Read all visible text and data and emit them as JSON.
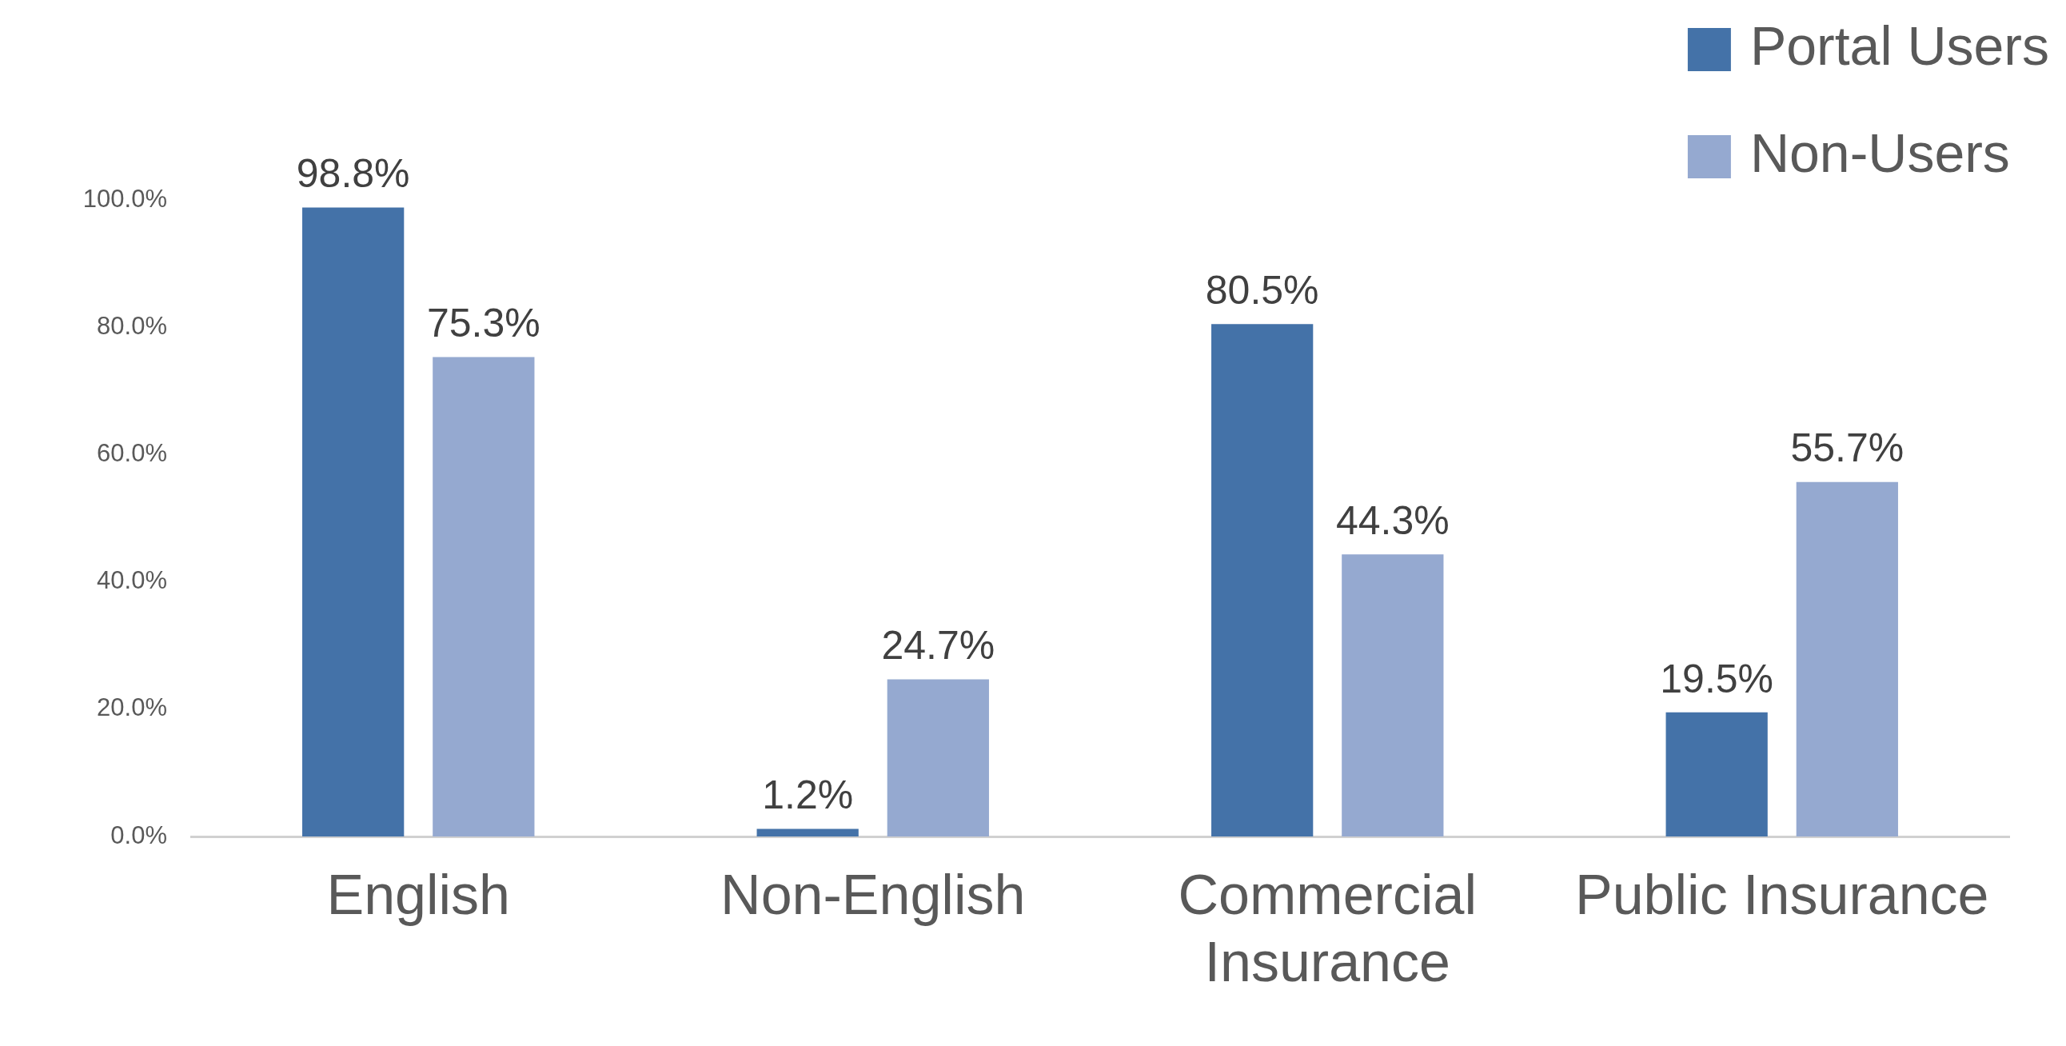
{
  "chart_data": {
    "type": "bar",
    "categories": [
      "English",
      "Non-English",
      "Commercial Insurance",
      "Public Insurance"
    ],
    "series": [
      {
        "name": "Portal Users",
        "color": "#4472a8",
        "values": [
          98.8,
          1.2,
          80.5,
          19.5
        ],
        "value_labels": [
          "98.8%",
          "1.2%",
          "80.5%",
          "19.5%"
        ]
      },
      {
        "name": "Non-Users",
        "color": "#95a9d0",
        "values": [
          75.3,
          24.7,
          44.3,
          55.7
        ],
        "value_labels": [
          "75.3%",
          "24.7%",
          "44.3%",
          "55.7%"
        ]
      }
    ],
    "ylim": [
      0,
      100
    ],
    "yticks": [
      {
        "value": 0,
        "label": "0.0%"
      },
      {
        "value": 20,
        "label": "20.0%"
      },
      {
        "value": 40,
        "label": "40.0%"
      },
      {
        "value": 60,
        "label": "60.0%"
      },
      {
        "value": 80,
        "label": "80.0%"
      },
      {
        "value": 100,
        "label": "100.0%"
      }
    ],
    "grid": false,
    "legend": "top right"
  }
}
